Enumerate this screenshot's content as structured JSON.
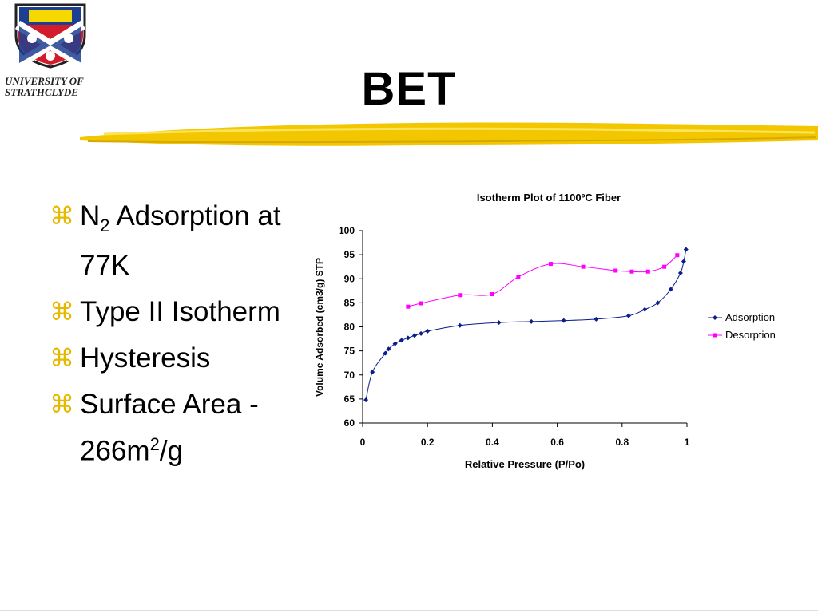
{
  "logo": {
    "line1": "UNIVERSITY OF",
    "line2": "STRATHCLYDE"
  },
  "slide": {
    "title": "BET"
  },
  "bullets": [
    {
      "text": "N",
      "sub": "2",
      "after": " Adsorption at 77K"
    },
    {
      "text": "Type II Isotherm"
    },
    {
      "text": "Hysteresis"
    },
    {
      "text": "Surface Area - 266m",
      "sup": "2",
      "after": "/g"
    }
  ],
  "colors": {
    "bullet": "#e6b800",
    "brush": "#f2c700",
    "adsorption": "#0b1d8a",
    "desorption": "#ff00ff"
  },
  "chart_data": {
    "type": "line",
    "title": "Isotherm Plot of 1100ºC Fiber",
    "xlabel": "Relative Pressure (P/Po)",
    "ylabel": "Volume Adsorbed (cm3/g) STP",
    "xlim": [
      0,
      1
    ],
    "ylim": [
      60,
      100
    ],
    "xticks": [
      "0",
      "0.2",
      "0.4",
      "0.6",
      "0.8",
      "1"
    ],
    "yticks": [
      "60",
      "65",
      "70",
      "75",
      "80",
      "85",
      "90",
      "95",
      "100"
    ],
    "grid": false,
    "legend": "right",
    "series": [
      {
        "name": "Adsorption",
        "marker": "diamond",
        "points": [
          [
            0.01,
            64.8
          ],
          [
            0.03,
            70.6
          ],
          [
            0.07,
            74.5
          ],
          [
            0.08,
            75.4
          ],
          [
            0.1,
            76.5
          ],
          [
            0.12,
            77.2
          ],
          [
            0.14,
            77.7
          ],
          [
            0.16,
            78.2
          ],
          [
            0.18,
            78.6
          ],
          [
            0.2,
            79.1
          ],
          [
            0.3,
            80.3
          ],
          [
            0.42,
            80.9
          ],
          [
            0.52,
            81.1
          ],
          [
            0.62,
            81.3
          ],
          [
            0.72,
            81.6
          ],
          [
            0.82,
            82.3
          ],
          [
            0.87,
            83.6
          ],
          [
            0.91,
            85.0
          ],
          [
            0.95,
            87.8
          ],
          [
            0.98,
            91.2
          ],
          [
            0.99,
            93.6
          ],
          [
            0.997,
            96.1
          ]
        ]
      },
      {
        "name": "Desorption",
        "marker": "square",
        "points": [
          [
            0.14,
            84.2
          ],
          [
            0.18,
            84.9
          ],
          [
            0.3,
            86.6
          ],
          [
            0.4,
            86.8
          ],
          [
            0.48,
            90.4
          ],
          [
            0.58,
            93.1
          ],
          [
            0.68,
            92.5
          ],
          [
            0.78,
            91.7
          ],
          [
            0.83,
            91.5
          ],
          [
            0.88,
            91.5
          ],
          [
            0.93,
            92.5
          ],
          [
            0.97,
            94.9
          ]
        ]
      }
    ]
  }
}
